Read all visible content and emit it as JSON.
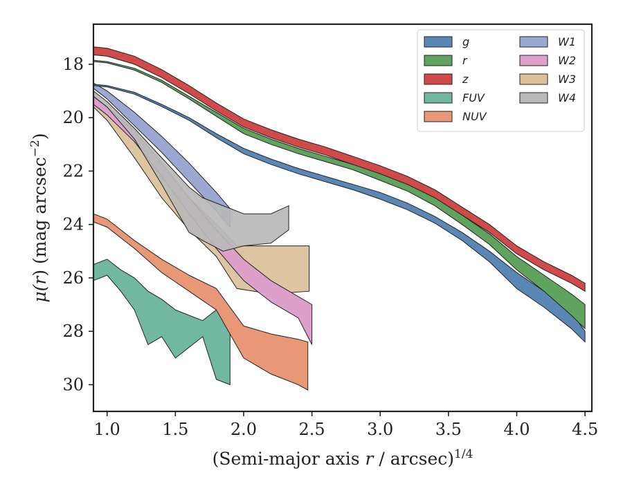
{
  "chart_data": {
    "type": "area",
    "xlabel": "(Semi-major axis r / arcsec)",
    "xlabel_parts": {
      "pre": "(Semi-major axis ",
      "var": "r",
      "post": " / arcsec)",
      "exp": "1/4"
    },
    "ylabel": "μ(r) (mag arcsec⁻²)",
    "ylabel_parts": {
      "mu": "μ(",
      "var": "r",
      "rest": ") (mag arcsec",
      "exp": "−2",
      "close": ")"
    },
    "xlim": [
      0.9,
      4.55
    ],
    "ylim": [
      31.0,
      16.5
    ],
    "y_inverted": true,
    "grid": false,
    "legend_position": "top-right",
    "legend_columns": 2,
    "xticks": [
      1.0,
      1.5,
      2.0,
      2.5,
      3.0,
      3.5,
      4.0,
      4.5
    ],
    "xtick_labels": [
      "1.0",
      "1.5",
      "2.0",
      "2.5",
      "3.0",
      "3.5",
      "4.0",
      "4.5"
    ],
    "yticks": [
      18,
      20,
      22,
      24,
      26,
      28,
      30
    ],
    "ytick_labels": [
      "18",
      "20",
      "22",
      "24",
      "26",
      "28",
      "30"
    ],
    "series": [
      {
        "name": "g",
        "color": "#5b87b5",
        "x": [
          0.9,
          1.0,
          1.2,
          1.4,
          1.6,
          1.8,
          2.0,
          2.2,
          2.4,
          2.6,
          2.8,
          3.0,
          3.2,
          3.4,
          3.6,
          3.8,
          4.0,
          4.2,
          4.4,
          4.5
        ],
        "lo": [
          18.75,
          18.8,
          19.05,
          19.5,
          20.0,
          20.6,
          21.15,
          21.55,
          21.9,
          22.2,
          22.5,
          22.8,
          23.2,
          23.7,
          24.3,
          25.0,
          25.8,
          26.5,
          27.3,
          28.0
        ],
        "hi": [
          18.8,
          18.85,
          19.12,
          19.58,
          20.1,
          20.75,
          21.35,
          21.75,
          22.1,
          22.4,
          22.7,
          23.05,
          23.45,
          23.95,
          24.6,
          25.4,
          26.4,
          27.1,
          27.9,
          28.4
        ]
      },
      {
        "name": "r",
        "color": "#5fa35f",
        "x": [
          0.9,
          1.0,
          1.2,
          1.4,
          1.6,
          1.8,
          2.0,
          2.2,
          2.4,
          2.6,
          2.8,
          3.0,
          3.2,
          3.4,
          3.6,
          3.8,
          4.0,
          4.2,
          4.4,
          4.5
        ],
        "lo": [
          17.85,
          17.9,
          18.15,
          18.6,
          19.2,
          19.8,
          20.4,
          20.8,
          21.15,
          21.45,
          21.75,
          22.1,
          22.5,
          23.0,
          23.65,
          24.35,
          25.2,
          25.9,
          26.6,
          27.0
        ],
        "hi": [
          17.9,
          17.95,
          18.22,
          18.68,
          19.3,
          19.95,
          20.6,
          21.0,
          21.35,
          21.65,
          21.95,
          22.35,
          22.75,
          23.3,
          24.0,
          24.75,
          25.7,
          26.5,
          27.4,
          27.9
        ]
      },
      {
        "name": "z",
        "color": "#d14a4a",
        "x": [
          0.9,
          1.0,
          1.2,
          1.4,
          1.6,
          1.8,
          2.0,
          2.2,
          2.4,
          2.6,
          2.8,
          3.0,
          3.2,
          3.4,
          3.6,
          3.8,
          4.0,
          4.2,
          4.4,
          4.5
        ],
        "lo": [
          17.35,
          17.4,
          17.7,
          18.2,
          18.8,
          19.45,
          20.05,
          20.45,
          20.8,
          21.1,
          21.45,
          21.8,
          22.2,
          22.7,
          23.35,
          24.0,
          24.8,
          25.4,
          25.9,
          26.2
        ]
      },
      {
        "name": "FUV",
        "color": "#72b8a0",
        "x": [
          0.9,
          1.0,
          1.1,
          1.2,
          1.3,
          1.4,
          1.5,
          1.6,
          1.7,
          1.8,
          1.9
        ],
        "lo": [
          25.5,
          25.3,
          25.7,
          26.0,
          26.5,
          26.8,
          27.2,
          27.4,
          27.6,
          27.2,
          27.8
        ],
        "hi": [
          26.1,
          25.9,
          26.5,
          27.2,
          28.5,
          28.2,
          29.0,
          28.6,
          28.2,
          29.8,
          30.0
        ]
      },
      {
        "name": "NUV",
        "color": "#e99877",
        "x": [
          0.9,
          1.0,
          1.2,
          1.4,
          1.6,
          1.8,
          2.0,
          2.2,
          2.4,
          2.47
        ],
        "lo": [
          23.6,
          23.8,
          24.6,
          25.3,
          25.9,
          26.4,
          27.8,
          28.1,
          28.3,
          28.4
        ],
        "hi": [
          23.9,
          24.1,
          24.9,
          25.8,
          26.5,
          27.2,
          29.0,
          29.6,
          30.0,
          30.2
        ]
      },
      {
        "name": "W1",
        "color": "#9ba8cf",
        "x": [
          0.9,
          1.0,
          1.2,
          1.4,
          1.6,
          1.8,
          1.9
        ],
        "lo": [
          18.7,
          19.0,
          19.8,
          20.7,
          21.7,
          22.8,
          23.4
        ],
        "hi": [
          18.9,
          19.3,
          20.3,
          21.3,
          22.4,
          23.5,
          24.1
        ]
      },
      {
        "name": "W2",
        "color": "#dca0cb",
        "x": [
          0.9,
          1.0,
          1.2,
          1.4,
          1.6,
          1.8,
          2.0,
          2.2,
          2.4,
          2.5
        ],
        "lo": [
          19.2,
          19.6,
          20.5,
          21.7,
          23.0,
          24.2,
          25.3,
          26.1,
          26.7,
          27.0
        ],
        "hi": [
          19.5,
          19.9,
          20.9,
          22.2,
          23.6,
          24.9,
          26.1,
          26.9,
          27.5,
          28.5
        ]
      },
      {
        "name": "W3",
        "color": "#dbc09a",
        "x": [
          0.9,
          1.0,
          1.2,
          1.4,
          1.6,
          1.8,
          1.95,
          2.2,
          2.48
        ],
        "lo": [
          19.3,
          19.7,
          20.8,
          22.0,
          23.0,
          24.0,
          24.8,
          24.8,
          24.8
        ],
        "hi": [
          19.6,
          20.1,
          21.5,
          23.0,
          24.2,
          25.2,
          26.4,
          26.6,
          26.5
        ]
      },
      {
        "name": "W4",
        "color": "#b9b9b9",
        "x": [
          0.9,
          1.0,
          1.2,
          1.4,
          1.6,
          1.7,
          1.85,
          2.0,
          2.2,
          2.33
        ],
        "lo": [
          19.0,
          19.4,
          20.4,
          21.5,
          22.6,
          23.0,
          23.3,
          23.6,
          23.6,
          23.3
        ],
        "hi": [
          19.2,
          19.6,
          20.8,
          22.5,
          24.3,
          24.6,
          25.0,
          24.8,
          24.7,
          24.2
        ]
      }
    ]
  }
}
